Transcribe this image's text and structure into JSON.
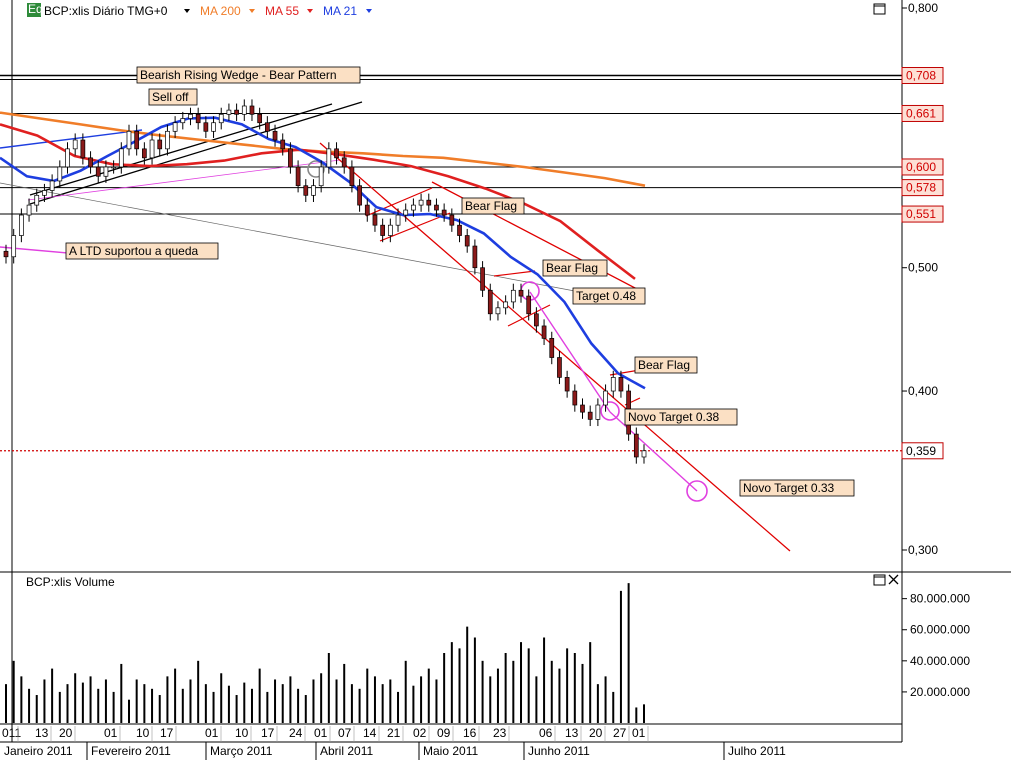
{
  "header": {
    "eq_badge": "Eq",
    "symbol_label": "BCP:xlis Diário TMG+0",
    "ma200_label": "MA 200",
    "ma55_label": "MA 55",
    "ma21_label": "MA 21",
    "dropdown_icon": "triangle-down-icon",
    "maximize_icon": "maximize-icon"
  },
  "volume_panel": {
    "title": "BCP:xlis Volume",
    "maximize_icon": "maximize-icon",
    "close_icon": "close-icon"
  },
  "colors": {
    "ma200": "#f07d29",
    "ma55": "#e02020",
    "ma21": "#1e3ee0",
    "trend": "#e00000",
    "projection": "#e040e0",
    "annotation_bg": "#fbe0c4",
    "last_price": "#d00000"
  },
  "chart_data": [
    {
      "type": "candlestick",
      "title": "BCP:xlis Diário TMG+0",
      "scale": "log",
      "ylim": [
        0.29,
        0.81
      ],
      "y_ticks": [
        "0,800",
        "0,500",
        "0,400",
        "0,300"
      ],
      "price_levels": [
        {
          "label": "0,708",
          "value": 0.708
        },
        {
          "label": "0,661",
          "value": 0.661
        },
        {
          "label": "0,600",
          "value": 0.6
        },
        {
          "label": "0,578",
          "value": 0.578
        },
        {
          "label": "0,551",
          "value": 0.551
        }
      ],
      "last_price": {
        "label": "0,359",
        "value": 0.359
      },
      "day_ticks": [
        "011",
        "13",
        "20",
        "01",
        "10",
        "17",
        "01",
        "10",
        "17",
        "24",
        "01",
        "07",
        "14",
        "21",
        "02",
        "09",
        "16",
        "23",
        "06",
        "13",
        "20",
        "27",
        "01"
      ],
      "month_labels": [
        "Janeiro 2011",
        "Fevereiro 2011",
        "Março 2011",
        "Abril 2011",
        "Maio 2011",
        "Junho 2011",
        "Julho 2011"
      ],
      "series": [
        {
          "name": "BCP:xlis",
          "close": [
            0.51,
            0.53,
            0.55,
            0.56,
            0.57,
            0.575,
            0.585,
            0.6,
            0.62,
            0.63,
            0.61,
            0.6,
            0.59,
            0.6,
            0.6,
            0.62,
            0.64,
            0.62,
            0.61,
            0.63,
            0.62,
            0.64,
            0.65,
            0.655,
            0.66,
            0.65,
            0.64,
            0.65,
            0.66,
            0.665,
            0.66,
            0.67,
            0.66,
            0.65,
            0.64,
            0.63,
            0.62,
            0.6,
            0.58,
            0.57,
            0.58,
            0.6,
            0.62,
            0.61,
            0.6,
            0.58,
            0.56,
            0.55,
            0.54,
            0.53,
            0.54,
            0.55,
            0.555,
            0.56,
            0.565,
            0.56,
            0.555,
            0.55,
            0.54,
            0.53,
            0.52,
            0.5,
            0.48,
            0.46,
            0.465,
            0.47,
            0.48,
            0.475,
            0.46,
            0.45,
            0.44,
            0.425,
            0.41,
            0.4,
            0.39,
            0.385,
            0.38,
            0.39,
            0.4,
            0.41,
            0.4,
            0.37,
            0.355,
            0.359
          ]
        },
        {
          "name": "MA 200",
          "values": [
            0.662,
            0.655,
            0.648,
            0.641,
            0.635,
            0.63,
            0.625,
            0.62,
            0.617,
            0.615,
            0.612,
            0.61,
            0.605,
            0.6,
            0.594,
            0.588,
            0.58
          ]
        },
        {
          "name": "MA 55",
          "values": [
            0.648,
            0.635,
            0.612,
            0.603,
            0.601,
            0.603,
            0.607,
            0.615,
            0.619,
            0.614,
            0.608,
            0.601,
            0.59,
            0.577,
            0.562,
            0.544,
            0.516,
            0.49
          ]
        },
        {
          "name": "MA 21",
          "values": [
            0.61,
            0.59,
            0.585,
            0.596,
            0.612,
            0.628,
            0.645,
            0.655,
            0.656,
            0.648,
            0.631,
            0.622,
            0.605,
            0.584,
            0.558,
            0.55,
            0.551,
            0.545,
            0.532,
            0.51,
            0.494,
            0.47,
            0.436,
            0.413,
            0.402
          ]
        }
      ],
      "annotations": [
        "Bearish Rising Wedge - Bear Pattern",
        "Sell off",
        "A LTD suportou a queda",
        "Bear Flag",
        "Bear Flag",
        "Target  0.48",
        "Bear Flag",
        "Novo Target  0.38",
        "Novo Target  0.33"
      ]
    },
    {
      "type": "bar",
      "title": "BCP:xlis Volume",
      "y_ticks": [
        "80.000.000",
        "60.000.000",
        "40.000.000",
        "20.000.000"
      ],
      "ylim": [
        0,
        92000000
      ],
      "values": [
        25,
        40,
        30,
        22,
        18,
        28,
        35,
        20,
        25,
        32,
        26,
        30,
        22,
        28,
        20,
        38,
        15,
        28,
        25,
        22,
        18,
        30,
        35,
        22,
        28,
        40,
        25,
        20,
        32,
        24,
        18,
        26,
        22,
        35,
        20,
        28,
        25,
        30,
        22,
        18,
        28,
        32,
        45,
        28,
        38,
        25,
        22,
        35,
        30,
        25,
        28,
        20,
        40,
        24,
        30,
        35,
        28,
        45,
        52,
        48,
        62,
        55,
        40,
        30,
        35,
        45,
        40,
        52,
        48,
        30,
        55,
        40,
        35,
        48,
        45,
        38,
        52,
        25,
        30,
        20,
        85,
        90,
        10,
        12
      ]
    }
  ]
}
